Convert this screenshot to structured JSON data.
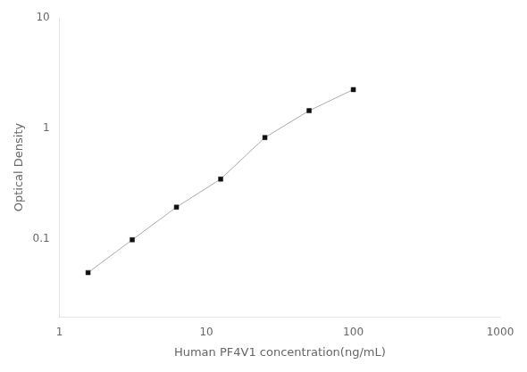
{
  "chart_data": {
    "type": "line",
    "x": [
      1.563,
      3.125,
      6.25,
      12.5,
      25,
      50,
      100
    ],
    "series": [
      {
        "values": [
          0.05,
          0.099,
          0.195,
          0.35,
          0.83,
          1.45,
          2.25
        ],
        "color": "#aaaaaa",
        "colors": [
          "#111111",
          "#111111",
          "#111111",
          "#111111",
          "#111111",
          "#111111",
          "#111111"
        ],
        "marker": "square",
        "line_style": "solid"
      }
    ],
    "xlabel": "Human PF4V1 concentration(ng/mL)",
    "ylabel": "Optical Density",
    "log": true,
    "xlim": [
      1,
      1000
    ],
    "ylim": [
      0.02,
      10
    ],
    "xticks": [
      1,
      10,
      100,
      1000
    ],
    "yticks": [
      0.1,
      1,
      10
    ],
    "grid": false
  }
}
